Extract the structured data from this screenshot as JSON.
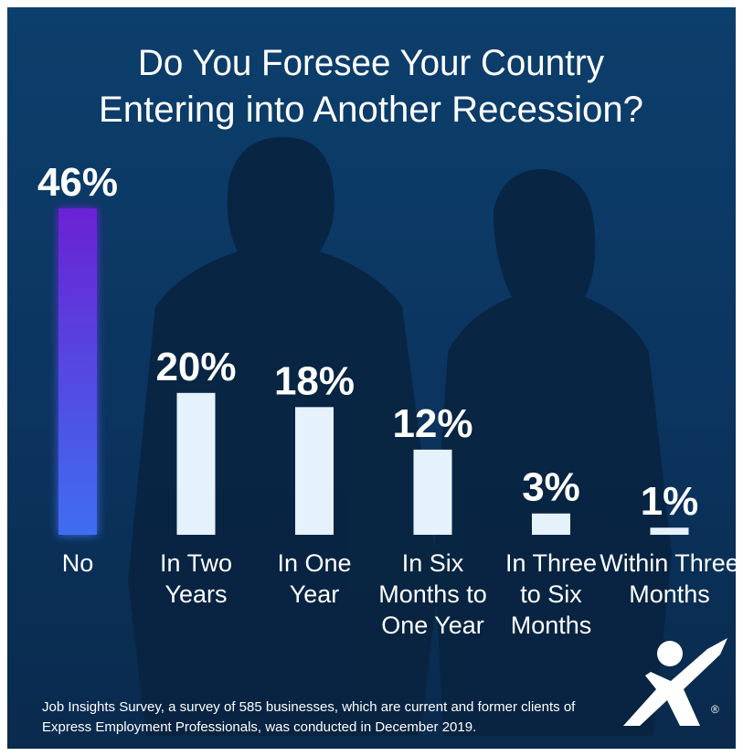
{
  "chart_data": {
    "type": "bar",
    "title": [
      "Do You Foresee Your Country",
      "Entering into Another Recession?"
    ],
    "categories": [
      [
        "No"
      ],
      [
        "In Two",
        "Years"
      ],
      [
        "In One",
        "Year"
      ],
      [
        "In Six",
        "Months to",
        "One Year"
      ],
      [
        "In Three",
        "to Six",
        "Months"
      ],
      [
        "Within Three",
        "Months"
      ]
    ],
    "values": [
      46,
      20,
      18,
      12,
      3,
      1
    ],
    "value_labels": [
      "46%",
      "20%",
      "18%",
      "12%",
      "3%",
      "1%"
    ],
    "colors": [
      "#4b3fe0",
      "#e6f2fb",
      "#e6f2fb",
      "#e6f2fb",
      "#e6f2fb",
      "#e6f2fb"
    ],
    "footnote": [
      "Job Insights Survey, a survey of 585 businesses, which are current and former clients of",
      "Express Employment Professionals, was conducted in December 2019."
    ],
    "logo_mark": "®"
  }
}
